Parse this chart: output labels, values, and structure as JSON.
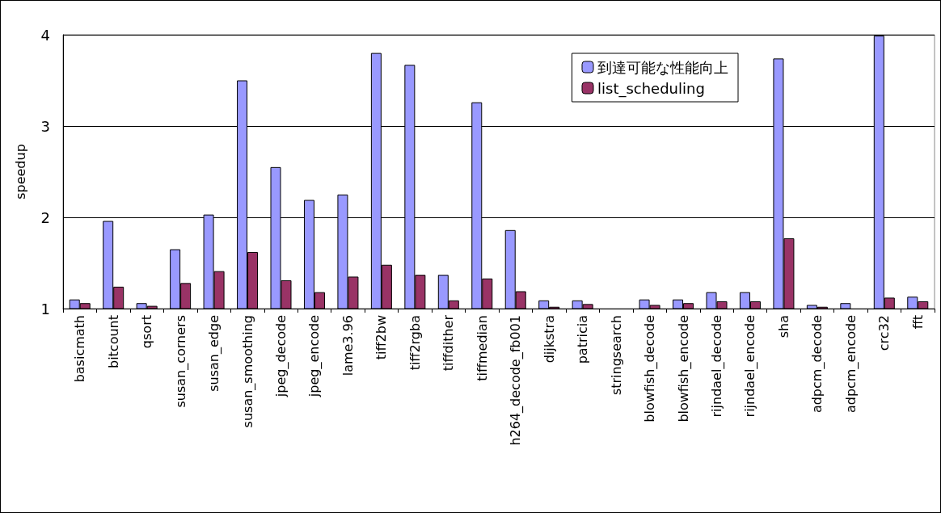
{
  "chart_data": {
    "type": "bar",
    "ylabel": "speedup",
    "categories": [
      "basicmath",
      "bitcount",
      "qsort",
      "susan_corners",
      "susan_edge",
      "susan_smoothing",
      "jpeg_decode",
      "jpeg_encode",
      "lame3.96",
      "tiff2bw",
      "tiff2rgba",
      "tiffdither",
      "tiffmedian",
      "h264_decode_fb001",
      "dijkstra",
      "patricia",
      "stringsearch",
      "blowfish_decode",
      "blowfish_encode",
      "rijndael_decode",
      "rijndael_encode",
      "sha",
      "adpcm_decode",
      "adpcm_encode",
      "crc32",
      "fft"
    ],
    "series": [
      {
        "name": "到達可能な性能向上",
        "color": "#9999ff",
        "values": [
          1.1,
          1.96,
          1.06,
          1.65,
          2.03,
          3.5,
          2.55,
          2.19,
          2.25,
          3.8,
          3.67,
          1.37,
          3.26,
          1.86,
          1.09,
          1.09,
          1.0,
          1.1,
          1.1,
          1.18,
          1.18,
          3.74,
          1.04,
          1.06,
          3.99,
          1.13
        ]
      },
      {
        "name": "list_scheduling",
        "color": "#993366",
        "values": [
          1.06,
          1.24,
          1.03,
          1.28,
          1.41,
          1.62,
          1.31,
          1.18,
          1.35,
          1.48,
          1.37,
          1.09,
          1.33,
          1.19,
          1.02,
          1.05,
          1.0,
          1.04,
          1.06,
          1.08,
          1.08,
          1.77,
          1.02,
          1.0,
          1.12,
          1.08
        ]
      }
    ],
    "ylim": [
      1,
      4
    ],
    "yticks": [
      1,
      2,
      3,
      4
    ],
    "grid": "y",
    "legend": "top right"
  }
}
